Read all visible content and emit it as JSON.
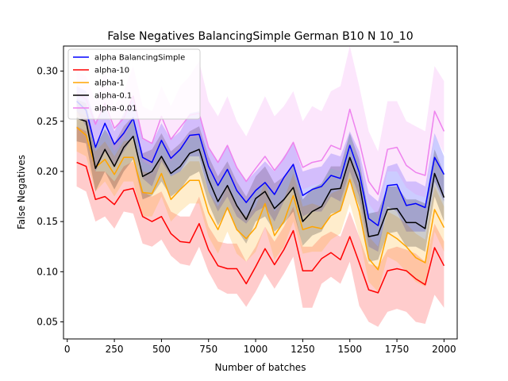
{
  "chart_data": {
    "type": "line",
    "title": "False Negatives BalancingSimple German B10 N 10_10",
    "xlabel": "Number of batches",
    "ylabel": "False Negatives",
    "xlim": [
      -20,
      2070
    ],
    "ylim": [
      0.033,
      0.325
    ],
    "xticks": [
      0,
      250,
      500,
      750,
      1000,
      1250,
      1500,
      1750,
      2000
    ],
    "yticks": [
      0.05,
      0.1,
      0.15,
      0.2,
      0.25,
      0.3
    ],
    "xtick_labels": [
      "0",
      "250",
      "500",
      "750",
      "1000",
      "1250",
      "1500",
      "1750",
      "2000"
    ],
    "ytick_labels": [
      "0.05",
      "0.10",
      "0.15",
      "0.20",
      "0.25",
      "0.30"
    ],
    "legend_position": "top-left",
    "grid": false,
    "shaded_band": "min–max range around each series",
    "x": [
      50,
      100,
      150,
      200,
      250,
      300,
      350,
      400,
      450,
      500,
      550,
      600,
      650,
      700,
      750,
      800,
      850,
      900,
      950,
      1000,
      1050,
      1100,
      1150,
      1200,
      1250,
      1300,
      1350,
      1400,
      1450,
      1500,
      1550,
      1600,
      1650,
      1700,
      1750,
      1800,
      1850,
      1900,
      1950,
      2000
    ],
    "series": [
      {
        "name": "alpha BalancingSimple",
        "color": "#0000ff",
        "values": [
          0.27,
          0.261,
          0.224,
          0.248,
          0.227,
          0.238,
          0.253,
          0.214,
          0.209,
          0.231,
          0.213,
          0.222,
          0.236,
          0.237,
          0.205,
          0.186,
          0.202,
          0.181,
          0.169,
          0.181,
          0.189,
          0.177,
          0.194,
          0.207,
          0.176,
          0.182,
          0.185,
          0.196,
          0.193,
          0.226,
          0.199,
          0.153,
          0.146,
          0.186,
          0.187,
          0.166,
          0.168,
          0.164,
          0.214,
          0.197
        ],
        "lower": [
          0.26,
          0.245,
          0.2,
          0.22,
          0.205,
          0.22,
          0.235,
          0.193,
          0.185,
          0.21,
          0.195,
          0.2,
          0.215,
          0.215,
          0.18,
          0.16,
          0.175,
          0.155,
          0.148,
          0.16,
          0.165,
          0.15,
          0.17,
          0.185,
          0.155,
          0.16,
          0.16,
          0.175,
          0.17,
          0.2,
          0.175,
          0.125,
          0.12,
          0.165,
          0.16,
          0.14,
          0.14,
          0.14,
          0.19,
          0.17
        ],
        "upper": [
          0.285,
          0.28,
          0.25,
          0.265,
          0.24,
          0.258,
          0.272,
          0.232,
          0.228,
          0.248,
          0.232,
          0.24,
          0.258,
          0.26,
          0.225,
          0.21,
          0.225,
          0.205,
          0.19,
          0.2,
          0.21,
          0.2,
          0.215,
          0.228,
          0.2,
          0.203,
          0.205,
          0.218,
          0.215,
          0.24,
          0.22,
          0.178,
          0.17,
          0.205,
          0.208,
          0.19,
          0.19,
          0.185,
          0.238,
          0.215
        ]
      },
      {
        "name": "alpha-10",
        "color": "#ff0000",
        "values": [
          0.209,
          0.205,
          0.172,
          0.175,
          0.167,
          0.181,
          0.183,
          0.155,
          0.15,
          0.155,
          0.138,
          0.13,
          0.129,
          0.148,
          0.122,
          0.106,
          0.103,
          0.103,
          0.088,
          0.105,
          0.123,
          0.107,
          0.122,
          0.141,
          0.101,
          0.101,
          0.113,
          0.119,
          0.112,
          0.135,
          0.109,
          0.082,
          0.079,
          0.101,
          0.103,
          0.101,
          0.093,
          0.087,
          0.124,
          0.106
        ],
        "lower": [
          0.185,
          0.18,
          0.15,
          0.155,
          0.143,
          0.16,
          0.158,
          0.128,
          0.125,
          0.132,
          0.116,
          0.108,
          0.106,
          0.125,
          0.1,
          0.083,
          0.078,
          0.078,
          0.065,
          0.08,
          0.098,
          0.083,
          0.098,
          0.115,
          0.064,
          0.064,
          0.088,
          0.095,
          0.088,
          0.11,
          0.066,
          0.05,
          0.045,
          0.06,
          0.063,
          0.06,
          0.05,
          0.048,
          0.077,
          0.064
        ],
        "upper": [
          0.245,
          0.24,
          0.2,
          0.2,
          0.19,
          0.205,
          0.21,
          0.18,
          0.175,
          0.18,
          0.16,
          0.155,
          0.155,
          0.175,
          0.145,
          0.13,
          0.128,
          0.128,
          0.11,
          0.125,
          0.145,
          0.13,
          0.145,
          0.165,
          0.125,
          0.125,
          0.135,
          0.14,
          0.135,
          0.16,
          0.135,
          0.108,
          0.105,
          0.122,
          0.125,
          0.122,
          0.118,
          0.11,
          0.148,
          0.13
        ]
      },
      {
        "name": "alpha-1",
        "color": "#ffa500",
        "values": [
          0.244,
          0.236,
          0.204,
          0.212,
          0.197,
          0.214,
          0.214,
          0.179,
          0.178,
          0.198,
          0.172,
          0.182,
          0.191,
          0.191,
          0.159,
          0.142,
          0.164,
          0.142,
          0.133,
          0.144,
          0.168,
          0.136,
          0.15,
          0.176,
          0.142,
          0.145,
          0.143,
          0.156,
          0.161,
          0.192,
          0.16,
          0.113,
          0.102,
          0.139,
          0.133,
          0.125,
          0.114,
          0.109,
          0.162,
          0.144
        ],
        "lower": [
          0.22,
          0.215,
          0.18,
          0.19,
          0.175,
          0.19,
          0.19,
          0.155,
          0.155,
          0.175,
          0.15,
          0.16,
          0.168,
          0.168,
          0.135,
          0.118,
          0.14,
          0.118,
          0.11,
          0.12,
          0.145,
          0.112,
          0.125,
          0.15,
          0.118,
          0.12,
          0.12,
          0.132,
          0.138,
          0.168,
          0.135,
          0.09,
          0.08,
          0.115,
          0.11,
          0.1,
          0.09,
          0.085,
          0.14,
          0.12
        ],
        "upper": [
          0.26,
          0.255,
          0.22,
          0.23,
          0.215,
          0.23,
          0.232,
          0.2,
          0.198,
          0.216,
          0.195,
          0.2,
          0.21,
          0.21,
          0.18,
          0.165,
          0.185,
          0.165,
          0.155,
          0.165,
          0.19,
          0.16,
          0.172,
          0.198,
          0.165,
          0.168,
          0.165,
          0.178,
          0.182,
          0.215,
          0.182,
          0.135,
          0.125,
          0.16,
          0.155,
          0.148,
          0.138,
          0.132,
          0.185,
          0.165
        ]
      },
      {
        "name": "alpha-0.1",
        "color": "#000000",
        "values": [
          0.253,
          0.25,
          0.203,
          0.222,
          0.205,
          0.224,
          0.235,
          0.195,
          0.2,
          0.215,
          0.198,
          0.205,
          0.218,
          0.222,
          0.192,
          0.17,
          0.186,
          0.166,
          0.152,
          0.173,
          0.18,
          0.163,
          0.172,
          0.184,
          0.15,
          0.16,
          0.165,
          0.182,
          0.183,
          0.214,
          0.189,
          0.135,
          0.137,
          0.162,
          0.163,
          0.149,
          0.149,
          0.143,
          0.198,
          0.174
        ],
        "lower": [
          0.23,
          0.228,
          0.18,
          0.2,
          0.182,
          0.2,
          0.212,
          0.172,
          0.176,
          0.19,
          0.175,
          0.182,
          0.195,
          0.2,
          0.168,
          0.146,
          0.162,
          0.142,
          0.128,
          0.15,
          0.155,
          0.14,
          0.148,
          0.16,
          0.126,
          0.136,
          0.14,
          0.158,
          0.16,
          0.19,
          0.165,
          0.11,
          0.112,
          0.138,
          0.14,
          0.125,
          0.125,
          0.12,
          0.175,
          0.15
        ],
        "upper": [
          0.272,
          0.268,
          0.225,
          0.242,
          0.228,
          0.245,
          0.255,
          0.218,
          0.222,
          0.238,
          0.22,
          0.228,
          0.24,
          0.245,
          0.215,
          0.195,
          0.21,
          0.19,
          0.175,
          0.195,
          0.205,
          0.188,
          0.195,
          0.208,
          0.172,
          0.183,
          0.188,
          0.205,
          0.205,
          0.238,
          0.212,
          0.158,
          0.16,
          0.185,
          0.185,
          0.172,
          0.172,
          0.168,
          0.222,
          0.198
        ]
      },
      {
        "name": "alpha-0.01",
        "color": "#ee82ee",
        "values": [
          0.278,
          0.272,
          0.247,
          0.268,
          0.243,
          0.253,
          0.275,
          0.233,
          0.228,
          0.255,
          0.232,
          0.244,
          0.256,
          0.258,
          0.224,
          0.209,
          0.226,
          0.204,
          0.19,
          0.203,
          0.215,
          0.201,
          0.213,
          0.229,
          0.204,
          0.209,
          0.211,
          0.226,
          0.222,
          0.262,
          0.23,
          0.19,
          0.177,
          0.222,
          0.224,
          0.206,
          0.199,
          0.196,
          0.26,
          0.24
        ],
        "lower": [
          0.255,
          0.25,
          0.225,
          0.245,
          0.22,
          0.232,
          0.252,
          0.21,
          0.205,
          0.232,
          0.21,
          0.222,
          0.233,
          0.235,
          0.2,
          0.186,
          0.203,
          0.18,
          0.168,
          0.18,
          0.19,
          0.178,
          0.19,
          0.205,
          0.182,
          0.186,
          0.188,
          0.203,
          0.2,
          0.238,
          0.207,
          0.168,
          0.155,
          0.2,
          0.2,
          0.184,
          0.177,
          0.174,
          0.236,
          0.218
        ],
        "upper": [
          0.3,
          0.295,
          0.27,
          0.3,
          0.265,
          0.28,
          0.305,
          0.265,
          0.26,
          0.285,
          0.265,
          0.285,
          0.295,
          0.31,
          0.27,
          0.255,
          0.275,
          0.25,
          0.235,
          0.255,
          0.275,
          0.255,
          0.265,
          0.28,
          0.25,
          0.265,
          0.26,
          0.28,
          0.285,
          0.325,
          0.285,
          0.24,
          0.22,
          0.27,
          0.27,
          0.25,
          0.245,
          0.24,
          0.305,
          0.29
        ]
      }
    ]
  }
}
